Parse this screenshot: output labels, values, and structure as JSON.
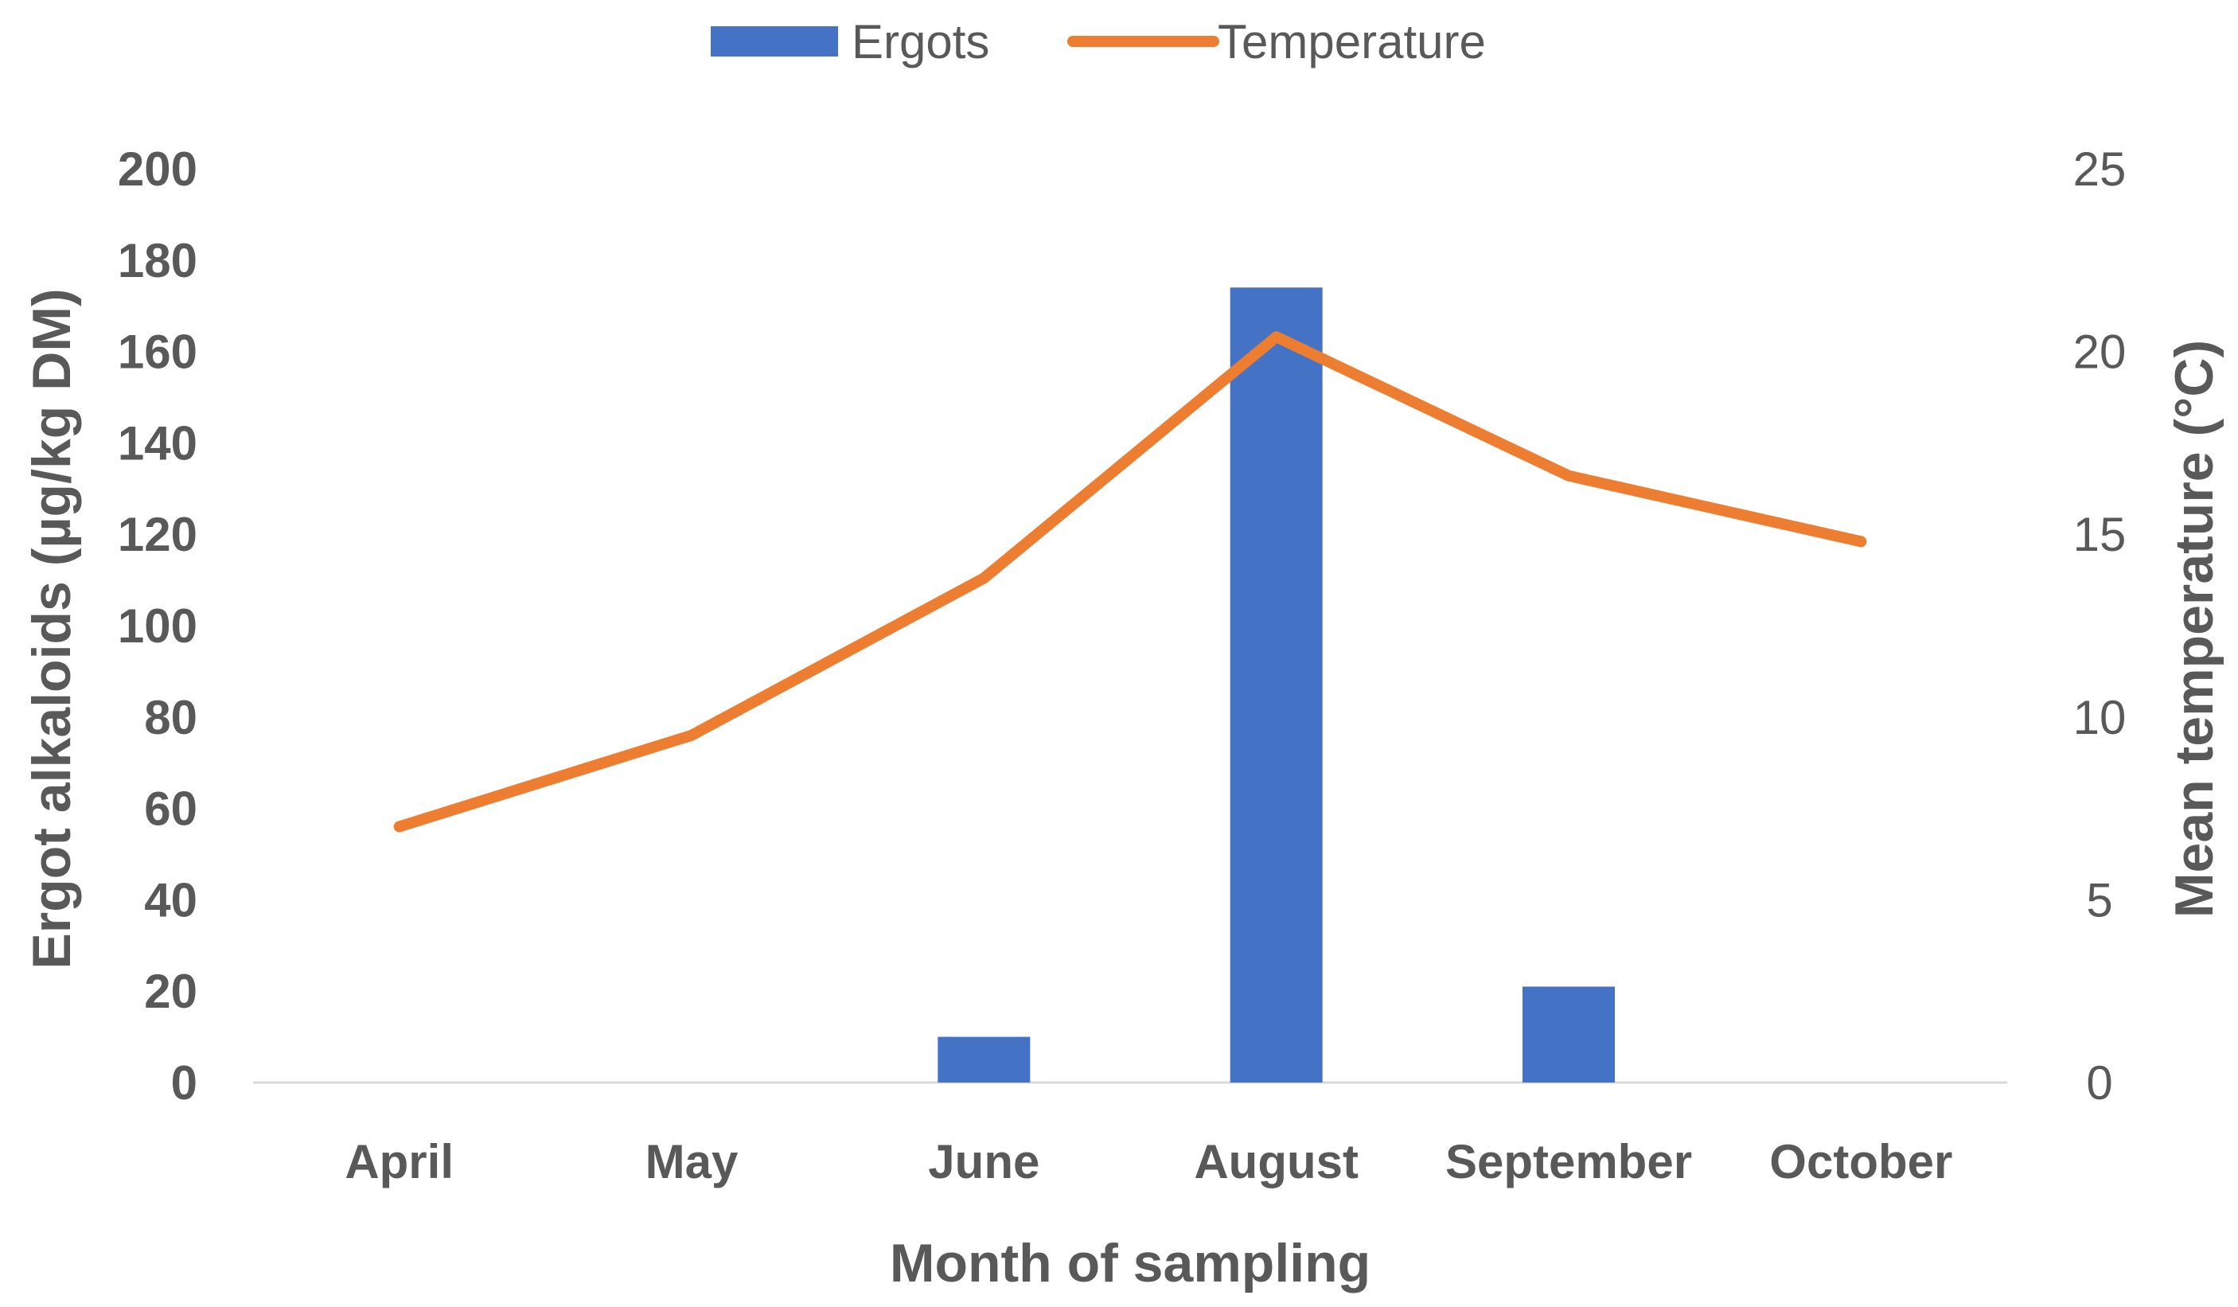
{
  "chart_data": {
    "type": "bar",
    "categories": [
      "April",
      "May",
      "June",
      "August",
      "September",
      "October"
    ],
    "series": [
      {
        "name": "Ergots",
        "type": "bar",
        "axis": "left",
        "color": "#4472C4",
        "values": [
          0,
          0,
          10,
          174,
          21,
          0
        ]
      },
      {
        "name": "Temperature",
        "type": "line",
        "axis": "right",
        "color": "#ED7D31",
        "values": [
          7.0,
          9.5,
          13.8,
          20.4,
          16.6,
          14.8
        ]
      }
    ],
    "xlabel": "Month of sampling",
    "ylabel": "Ergot alkaloids (µg/kg DM)",
    "y2label": "Mean temperature (°C)",
    "ylim": [
      0,
      200
    ],
    "y2lim": [
      0,
      25
    ],
    "yticks": [
      "0",
      "20",
      "40",
      "60",
      "80",
      "100",
      "120",
      "140",
      "160",
      "180",
      "200"
    ],
    "y2ticks": [
      "0",
      "5",
      "10",
      "15",
      "20",
      "25"
    ],
    "grid": false,
    "legend": "top-center"
  }
}
